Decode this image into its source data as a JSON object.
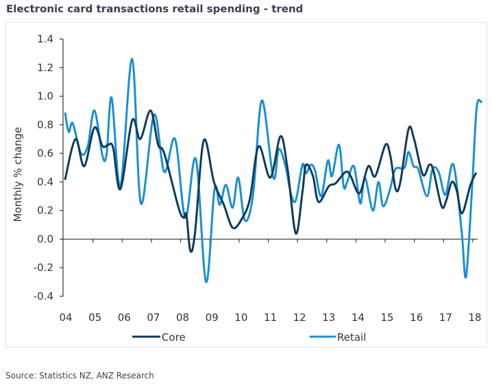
{
  "header": {
    "title": "Electronic card transactions retail spending - trend"
  },
  "footer": {
    "source": "Source: Statistics NZ, ANZ Research"
  },
  "chart_data": {
    "type": "line",
    "title": "Electronic card transactions retail spending - trend",
    "xlabel": "",
    "ylabel": "Monthly % change",
    "xlim": [
      2004,
      2018
    ],
    "ylim": [
      -0.4,
      1.4
    ],
    "grid": false,
    "legend_position": "bottom",
    "x_tick_values": [
      2004,
      2005,
      2006,
      2007,
      2008,
      2009,
      2010,
      2011,
      2012,
      2013,
      2014,
      2015,
      2016,
      2017,
      2018
    ],
    "x_tick_labels": [
      "04",
      "05",
      "06",
      "07",
      "08",
      "09",
      "10",
      "11",
      "12",
      "13",
      "14",
      "15",
      "16",
      "17",
      "18"
    ],
    "y_tick_values": [
      1.4,
      1.2,
      1.0,
      0.8,
      0.6,
      0.4,
      0.2,
      0.0,
      -0.2,
      -0.4
    ],
    "y_tick_labels": [
      "1.4",
      "1.2",
      "1.0",
      "0.8",
      "0.6",
      "0.4",
      "0.2",
      "0.0",
      "-0.2",
      "-0.4"
    ],
    "series": [
      {
        "name": "Core",
        "color": "#0d3a5c",
        "points": [
          [
            2003.98,
            0.42
          ],
          [
            2004.33,
            0.7
          ],
          [
            2004.63,
            0.51
          ],
          [
            2004.98,
            0.78
          ],
          [
            2005.26,
            0.65
          ],
          [
            2005.45,
            0.66
          ],
          [
            2005.62,
            0.64
          ],
          [
            2005.87,
            0.35
          ],
          [
            2006.27,
            0.83
          ],
          [
            2006.55,
            0.7
          ],
          [
            2006.9,
            0.9
          ],
          [
            2007.16,
            0.66
          ],
          [
            2007.37,
            0.6
          ],
          [
            2007.86,
            0.22
          ],
          [
            2008.03,
            0.15
          ],
          [
            2008.13,
            0.17
          ],
          [
            2008.26,
            -0.08
          ],
          [
            2008.42,
            0.04
          ],
          [
            2008.72,
            0.69
          ],
          [
            2009.07,
            0.4
          ],
          [
            2009.41,
            0.24
          ],
          [
            2009.71,
            0.08
          ],
          [
            2010.02,
            0.14
          ],
          [
            2010.3,
            0.28
          ],
          [
            2010.6,
            0.65
          ],
          [
            2011.0,
            0.43
          ],
          [
            2011.35,
            0.72
          ],
          [
            2011.59,
            0.49
          ],
          [
            2011.87,
            0.04
          ],
          [
            2012.1,
            0.33
          ],
          [
            2012.22,
            0.52
          ],
          [
            2012.46,
            0.44
          ],
          [
            2012.65,
            0.26
          ],
          [
            2013.0,
            0.37
          ],
          [
            2013.23,
            0.39
          ],
          [
            2013.58,
            0.47
          ],
          [
            2013.75,
            0.44
          ],
          [
            2014.05,
            0.32
          ],
          [
            2014.35,
            0.51
          ],
          [
            2014.59,
            0.44
          ],
          [
            2014.94,
            0.66
          ],
          [
            2015.11,
            0.58
          ],
          [
            2015.29,
            0.35
          ],
          [
            2015.45,
            0.4
          ],
          [
            2015.73,
            0.77
          ],
          [
            2015.92,
            0.7
          ],
          [
            2016.22,
            0.45
          ],
          [
            2016.44,
            0.52
          ],
          [
            2016.58,
            0.48
          ],
          [
            2016.86,
            0.23
          ],
          [
            2017.02,
            0.27
          ],
          [
            2017.21,
            0.4
          ],
          [
            2017.38,
            0.34
          ],
          [
            2017.56,
            0.18
          ],
          [
            2017.85,
            0.38
          ],
          [
            2018.03,
            0.46
          ]
        ]
      },
      {
        "name": "Retail",
        "color": "#1a8fd0",
        "points": [
          [
            2003.98,
            0.88
          ],
          [
            2004.1,
            0.75
          ],
          [
            2004.24,
            0.81
          ],
          [
            2004.52,
            0.6
          ],
          [
            2004.75,
            0.65
          ],
          [
            2004.98,
            0.9
          ],
          [
            2005.26,
            0.58
          ],
          [
            2005.4,
            0.6
          ],
          [
            2005.57,
            0.99
          ],
          [
            2005.87,
            0.37
          ],
          [
            2006.27,
            1.26
          ],
          [
            2006.57,
            0.25
          ],
          [
            2007.02,
            0.87
          ],
          [
            2007.37,
            0.47
          ],
          [
            2007.74,
            0.7
          ],
          [
            2008.09,
            0.15
          ],
          [
            2008.45,
            0.56
          ],
          [
            2008.8,
            -0.3
          ],
          [
            2009.09,
            0.35
          ],
          [
            2009.27,
            0.24
          ],
          [
            2009.48,
            0.38
          ],
          [
            2009.71,
            0.22
          ],
          [
            2009.9,
            0.43
          ],
          [
            2010.13,
            0.13
          ],
          [
            2010.41,
            0.31
          ],
          [
            2010.71,
            0.97
          ],
          [
            2011.1,
            0.43
          ],
          [
            2011.29,
            0.63
          ],
          [
            2011.52,
            0.51
          ],
          [
            2011.7,
            0.32
          ],
          [
            2011.87,
            0.27
          ],
          [
            2012.1,
            0.52
          ],
          [
            2012.22,
            0.46
          ],
          [
            2012.38,
            0.52
          ],
          [
            2012.53,
            0.48
          ],
          [
            2012.74,
            0.3
          ],
          [
            2012.97,
            0.55
          ],
          [
            2013.11,
            0.44
          ],
          [
            2013.35,
            0.66
          ],
          [
            2013.51,
            0.37
          ],
          [
            2013.63,
            0.4
          ],
          [
            2013.86,
            0.51
          ],
          [
            2014.08,
            0.25
          ],
          [
            2014.24,
            0.43
          ],
          [
            2014.51,
            0.2
          ],
          [
            2014.7,
            0.4
          ],
          [
            2014.86,
            0.23
          ],
          [
            2015.1,
            0.35
          ],
          [
            2015.28,
            0.49
          ],
          [
            2015.59,
            0.5
          ],
          [
            2015.73,
            0.61
          ],
          [
            2015.9,
            0.51
          ],
          [
            2016.06,
            0.49
          ],
          [
            2016.36,
            0.3
          ],
          [
            2016.55,
            0.49
          ],
          [
            2016.76,
            0.47
          ],
          [
            2016.99,
            0.31
          ],
          [
            2017.21,
            0.52
          ],
          [
            2017.35,
            0.43
          ],
          [
            2017.56,
            0.03
          ],
          [
            2017.7,
            -0.26
          ],
          [
            2017.91,
            0.38
          ],
          [
            2018.06,
            0.92
          ],
          [
            2018.22,
            0.96
          ]
        ]
      }
    ]
  }
}
